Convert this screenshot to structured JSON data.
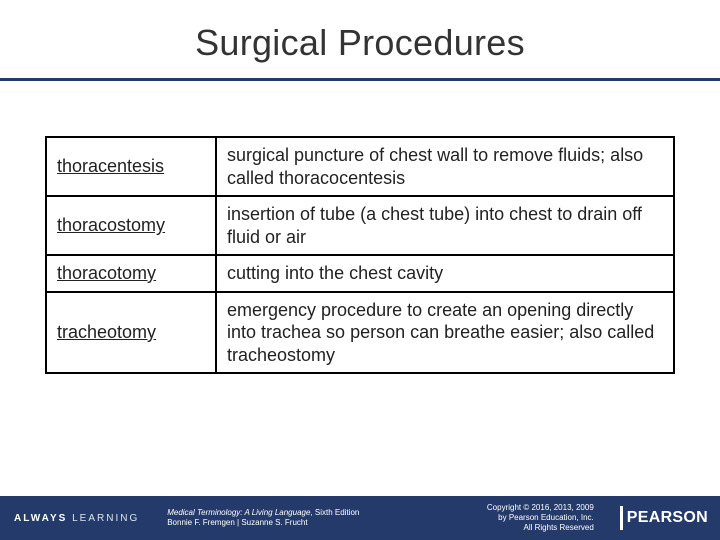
{
  "slide": {
    "title": "Surgical Procedures"
  },
  "table": {
    "rows": [
      {
        "term": "thoracentesis",
        "definition": "surgical puncture of chest wall to remove fluids; also called thoracocentesis"
      },
      {
        "term": "thoracostomy",
        "definition": "insertion of tube (a chest tube) into chest to drain off fluid or air"
      },
      {
        "term": "thoracotomy",
        "definition": "cutting into the chest cavity"
      },
      {
        "term": "tracheotomy",
        "definition": "emergency procedure to create an opening directly into trachea so person can breathe easier; also called tracheostomy"
      }
    ]
  },
  "footer": {
    "tagline_a": "ALWAYS",
    "tagline_b": "LEARNING",
    "book_title": "Medical Terminology: A Living Language",
    "book_edition": ", Sixth Edition",
    "authors": "Bonnie F. Fremgen | Suzanne S. Frucht",
    "copyright_line1": "Copyright © 2016, 2013, 2009",
    "copyright_line2": "by Pearson Education, Inc.",
    "copyright_line3": "All Rights Reserved",
    "brand": "PEARSON"
  },
  "colors": {
    "rule": "#243a6b",
    "footer_bg": "#243a6b",
    "text": "#222222"
  }
}
